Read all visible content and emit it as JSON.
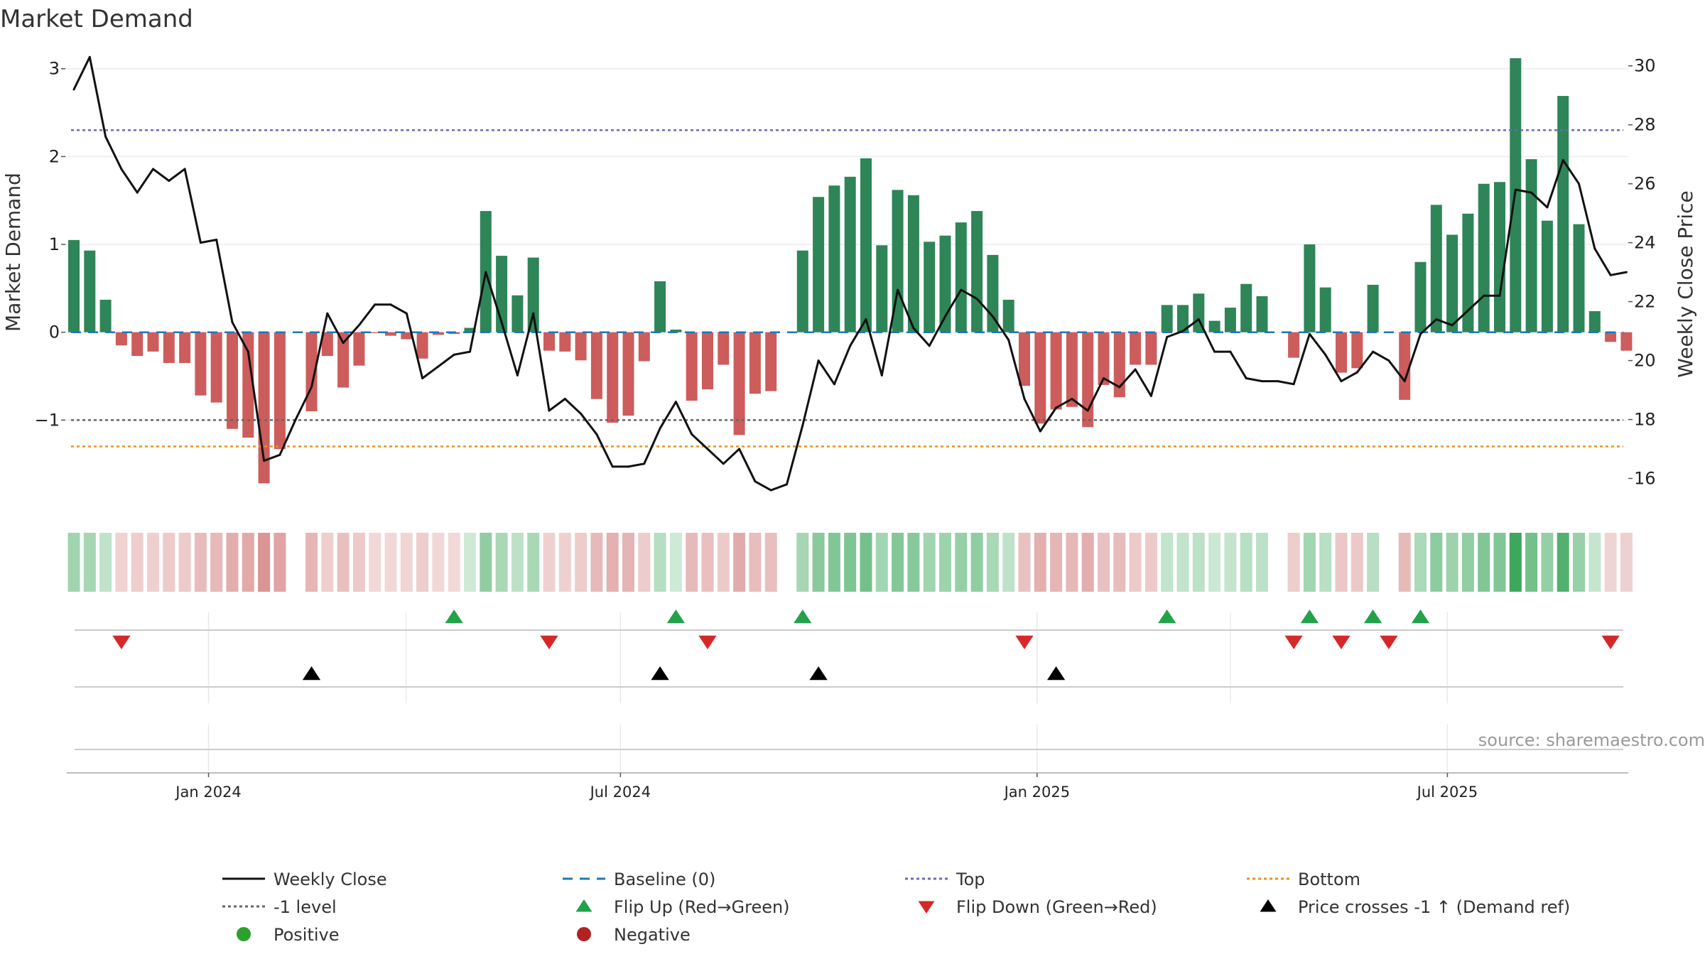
{
  "chart_data": {
    "type": "bar",
    "title": "Market Demand",
    "ylabel_left": "Market Demand",
    "ylabel_right": "Weekly Close Price",
    "ylim_left": [
      -2.0,
      3.2
    ],
    "yticks_left": [
      3,
      2,
      1,
      0,
      -1
    ],
    "ytick_labels_left": [
      "3",
      "2",
      "1",
      "0",
      "−1"
    ],
    "ylim_right": [
      15,
      30.5
    ],
    "yticks_right": [
      30,
      28,
      26,
      24,
      22,
      20,
      18,
      16
    ],
    "ytick_labels_right": [
      "30",
      "28",
      "26",
      "24",
      "22",
      "20",
      "18",
      "16"
    ],
    "x_ticks": [
      {
        "week": 8.5,
        "label": "Jan 2024"
      },
      {
        "week": 34.5,
        "label": "Jul 2024"
      },
      {
        "week": 60.8,
        "label": "Jan 2025"
      },
      {
        "week": 86.7,
        "label": "Jul 2025"
      }
    ],
    "reference_lines": {
      "top": 2.3,
      "minus_one": -1.0,
      "bottom": -1.3,
      "baseline": 0.0
    },
    "demand": [
      1.05,
      0.93,
      0.37,
      -0.15,
      -0.27,
      -0.22,
      -0.35,
      -0.35,
      -0.72,
      -0.8,
      -1.1,
      -1.2,
      -1.72,
      -1.33,
      0.0,
      -0.9,
      -0.27,
      -0.63,
      -0.38,
      -0.01,
      -0.04,
      -0.08,
      -0.3,
      -0.03,
      -0.02,
      0.05,
      1.38,
      0.87,
      0.42,
      0.85,
      -0.21,
      -0.22,
      -0.32,
      -0.76,
      -1.03,
      -0.95,
      -0.33,
      0.58,
      0.03,
      -0.78,
      -0.65,
      -0.37,
      -1.17,
      -0.7,
      -0.67,
      0.0,
      0.93,
      1.54,
      1.67,
      1.77,
      1.98,
      0.99,
      1.62,
      1.56,
      1.03,
      1.1,
      1.25,
      1.38,
      0.88,
      0.37,
      -0.61,
      -1.04,
      -0.88,
      -0.85,
      -1.08,
      -0.6,
      -0.74,
      -0.37,
      -0.37,
      0.31,
      0.31,
      0.44,
      0.13,
      0.28,
      0.55,
      0.41,
      0.0,
      -0.29,
      1.0,
      0.51,
      -0.46,
      -0.41,
      0.54,
      0.0,
      -0.77,
      0.8,
      1.45,
      1.11,
      1.35,
      1.69,
      1.71,
      3.12,
      1.97,
      1.27,
      2.69,
      1.23,
      0.24,
      -0.11,
      -0.21
    ],
    "weekly_close": [
      29.2,
      30.3,
      27.6,
      26.5,
      25.7,
      26.5,
      26.1,
      26.5,
      24.0,
      24.1,
      21.3,
      20.3,
      16.6,
      16.8,
      18.0,
      19.1,
      21.6,
      20.6,
      21.2,
      21.9,
      21.9,
      21.6,
      19.4,
      19.8,
      20.2,
      20.3,
      23.0,
      21.3,
      19.5,
      21.6,
      18.3,
      18.7,
      18.2,
      17.5,
      16.4,
      16.4,
      16.5,
      17.7,
      18.6,
      17.5,
      17.0,
      16.5,
      17.0,
      15.9,
      15.6,
      15.8,
      17.8,
      20.0,
      19.2,
      20.5,
      21.4,
      19.5,
      22.4,
      21.1,
      20.5,
      21.5,
      22.4,
      22.1,
      21.5,
      20.7,
      18.7,
      17.6,
      18.4,
      18.7,
      18.3,
      19.4,
      19.1,
      19.7,
      18.8,
      20.8,
      21.0,
      21.4,
      20.3,
      20.3,
      19.4,
      19.3,
      19.3,
      19.2,
      20.9,
      20.2,
      19.3,
      19.6,
      20.3,
      20.0,
      19.3,
      20.9,
      21.4,
      21.2,
      21.7,
      22.2,
      22.2,
      25.8,
      25.7,
      25.2,
      26.8,
      26.0,
      23.8,
      22.9,
      23.0
    ],
    "flip_up_weeks": [
      24,
      38,
      46,
      69,
      78,
      82,
      85
    ],
    "flip_down_weeks": [
      3,
      30,
      40,
      60,
      77,
      80,
      83,
      97
    ],
    "price_cross_weeks": [
      15,
      37,
      47,
      62
    ],
    "source": "source: sharemaestro.com",
    "colors": {
      "positive_bar": "#2e8558",
      "negative_bar": "#cd5c5c",
      "price_line": "#111111",
      "baseline": "#1f77b4",
      "top": "#6a6aba",
      "minus_one": "#666666",
      "bottom": "#e8921c",
      "flip_up": "#22a34a",
      "flip_down": "#d62828",
      "cross": "#000000",
      "positive_dot": "#2ca02c",
      "negative_dot": "#b22222"
    },
    "legend": [
      {
        "label": "Weekly Close",
        "kind": "solid-line",
        "color": "#111111"
      },
      {
        "label": "Baseline (0)",
        "kind": "dashed-line",
        "color": "#1f77b4"
      },
      {
        "label": "Top",
        "kind": "dotted-line",
        "color": "#6a6aba"
      },
      {
        "label": "Bottom",
        "kind": "dotted-line",
        "color": "#e8921c"
      },
      {
        "label": "-1 level",
        "kind": "dotted-line",
        "color": "#666666"
      },
      {
        "label": "Flip Up (Red→Green)",
        "kind": "triangle-up",
        "color": "#22a34a"
      },
      {
        "label": "Flip Down (Green→Red)",
        "kind": "triangle-down",
        "color": "#d62828"
      },
      {
        "label": "Price crosses -1 ↑ (Demand ref)",
        "kind": "triangle-up",
        "color": "#000000"
      },
      {
        "label": "Positive",
        "kind": "dot",
        "color": "#2ca02c"
      },
      {
        "label": "Negative",
        "kind": "dot",
        "color": "#b22222"
      }
    ]
  }
}
